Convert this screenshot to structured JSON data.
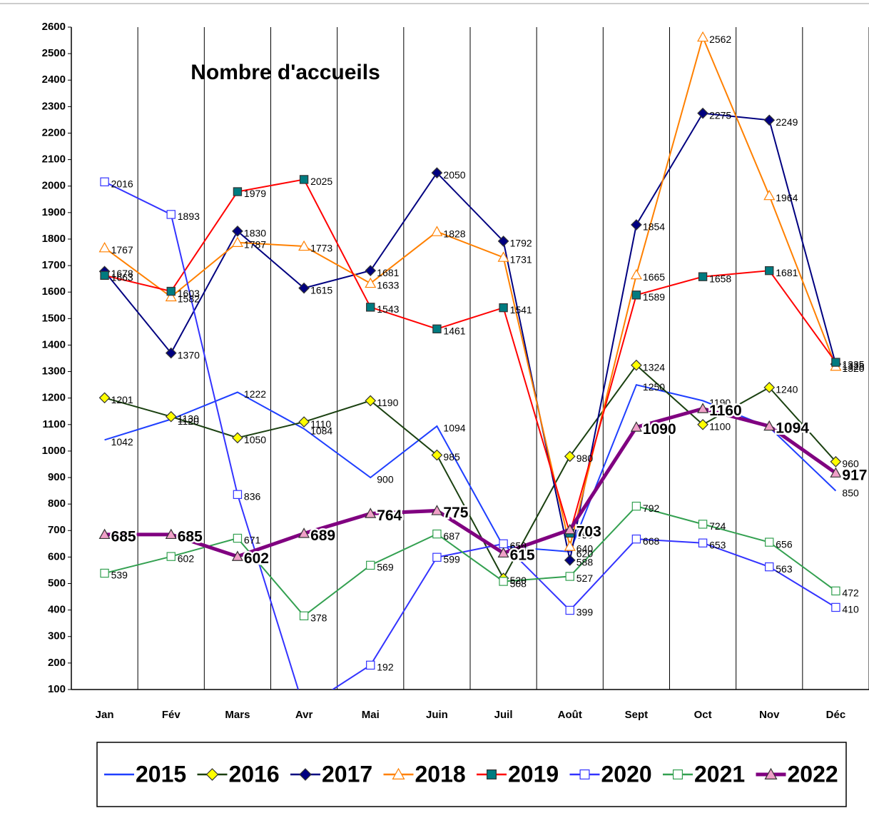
{
  "chart_data": {
    "type": "line",
    "title": "Nombre d'accueils",
    "categories": [
      "Jan",
      "Fév",
      "Mars",
      "Avr",
      "Mai",
      "Juin",
      "Juil",
      "Août",
      "Sept",
      "Oct",
      "Nov",
      "Déc"
    ],
    "ylim": [
      100,
      2600
    ],
    "yticks": [
      100,
      200,
      300,
      400,
      500,
      600,
      700,
      800,
      900,
      1000,
      1100,
      1200,
      1300,
      1400,
      1500,
      1600,
      1700,
      1800,
      1900,
      2000,
      2100,
      2200,
      2300,
      2400,
      2500,
      2600
    ],
    "grid": "x",
    "legend": "bottom",
    "series": [
      {
        "name": "2015",
        "color": "#1f3fff",
        "marker": "none",
        "marker_color": "#1f3fff",
        "values": [
          1042,
          1120,
          1222,
          1084,
          900,
          1094,
          640,
          620,
          1250,
          1190,
          1090,
          850
        ]
      },
      {
        "name": "2016",
        "color": "#1a4010",
        "marker": "diamond",
        "marker_color": "#ffff00",
        "values": [
          1201,
          1130,
          1050,
          1110,
          1190,
          985,
          520,
          980,
          1324,
          1100,
          1240,
          960
        ]
      },
      {
        "name": "2017",
        "color": "#000080",
        "marker": "diamond",
        "marker_color": "#000080",
        "values": [
          1678,
          1370,
          1830,
          1615,
          1681,
          2050,
          1792,
          588,
          1854,
          2275,
          2249,
          1328
        ]
      },
      {
        "name": "2018",
        "color": "#ff8000",
        "marker": "triangle",
        "marker_color": "#ffffff",
        "values": [
          1767,
          1582,
          1787,
          1773,
          1633,
          1828,
          1731,
          640,
          1665,
          2562,
          1964,
          1320
        ]
      },
      {
        "name": "2019",
        "color": "#ff0000",
        "marker": "square",
        "marker_color": "#007b80",
        "values": [
          1663,
          1603,
          1979,
          2025,
          1543,
          1461,
          1541,
          690,
          1589,
          1658,
          1681,
          1335
        ]
      },
      {
        "name": "2020",
        "color": "#3333ff",
        "marker": "square",
        "marker_color": "#ffffff",
        "values": [
          2016,
          1893,
          836,
          30,
          192,
          599,
          650,
          399,
          668,
          653,
          563,
          410
        ]
      },
      {
        "name": "2021",
        "color": "#33a050",
        "marker": "square",
        "marker_color": "#ffffff",
        "values": [
          539,
          602,
          671,
          378,
          569,
          687,
          508,
          527,
          792,
          724,
          656,
          472
        ]
      },
      {
        "name": "2022",
        "color": "#800080",
        "marker": "triangle",
        "marker_color": "#f0a0c8",
        "values": [
          685,
          685,
          602,
          689,
          764,
          775,
          615,
          703,
          1090,
          1160,
          1094,
          917
        ]
      }
    ]
  }
}
